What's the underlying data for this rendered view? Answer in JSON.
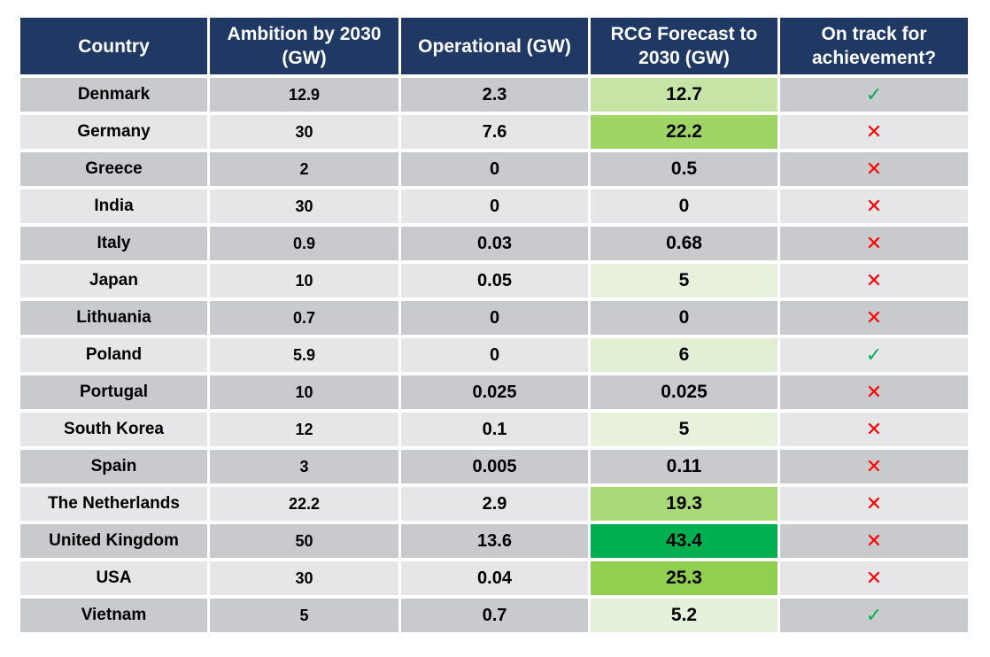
{
  "chart_data": {
    "type": "table",
    "columns": [
      {
        "key": "country",
        "label": "Country"
      },
      {
        "key": "ambition",
        "label": "Ambition by 2030 (GW)"
      },
      {
        "key": "operational",
        "label": "Operational (GW)"
      },
      {
        "key": "forecast",
        "label": "RCG Forecast to 2030 (GW)"
      },
      {
        "key": "ontrack",
        "label": "On track for achievement?"
      }
    ],
    "rows": [
      {
        "country": "Denmark",
        "ambition": "12.9",
        "operational": "2.3",
        "forecast": "12.7",
        "ontrack": true
      },
      {
        "country": "Germany",
        "ambition": "30",
        "operational": "7.6",
        "forecast": "22.2",
        "ontrack": false
      },
      {
        "country": "Greece",
        "ambition": "2",
        "operational": "0",
        "forecast": "0.5",
        "ontrack": false
      },
      {
        "country": "India",
        "ambition": "30",
        "operational": "0",
        "forecast": "0",
        "ontrack": false
      },
      {
        "country": "Italy",
        "ambition": "0.9",
        "operational": "0.03",
        "forecast": "0.68",
        "ontrack": false
      },
      {
        "country": "Japan",
        "ambition": "10",
        "operational": "0.05",
        "forecast": "5",
        "ontrack": false
      },
      {
        "country": "Lithuania",
        "ambition": "0.7",
        "operational": "0",
        "forecast": "0",
        "ontrack": false
      },
      {
        "country": "Poland",
        "ambition": "5.9",
        "operational": "0",
        "forecast": "6",
        "ontrack": true
      },
      {
        "country": "Portugal",
        "ambition": "10",
        "operational": "0.025",
        "forecast": "0.025",
        "ontrack": false
      },
      {
        "country": "South Korea",
        "ambition": "12",
        "operational": "0.1",
        "forecast": "5",
        "ontrack": false
      },
      {
        "country": "Spain",
        "ambition": "3",
        "operational": "0.005",
        "forecast": "0.11",
        "ontrack": false
      },
      {
        "country": "The Netherlands",
        "ambition": "22.2",
        "operational": "2.9",
        "forecast": "19.3",
        "ontrack": false
      },
      {
        "country": "United Kingdom",
        "ambition": "50",
        "operational": "13.6",
        "forecast": "43.4",
        "ontrack": false
      },
      {
        "country": "USA",
        "ambition": "30",
        "operational": "0.04",
        "forecast": "25.3",
        "ontrack": false
      },
      {
        "country": "Vietnam",
        "ambition": "5",
        "operational": "0.7",
        "forecast": "5.2",
        "ontrack": true
      }
    ],
    "forecast_color_scale": {
      "min": 5,
      "max": 43.4,
      "low_color": "#e7f1dc",
      "mid_color": "#92d050",
      "high_color": "#00b050",
      "mid_value": 25
    }
  },
  "colors": {
    "header_bg": "#1f3864",
    "header_text": "#ffffff",
    "row_odd": "#c9cacd",
    "row_even": "#e6e6e8",
    "check": "#00b050",
    "cross": "#ff0000"
  },
  "icons": {
    "on_track_yes": "check-icon",
    "on_track_no": "cross-icon"
  },
  "glyphs": {
    "yes": "✓",
    "no": "✕"
  }
}
